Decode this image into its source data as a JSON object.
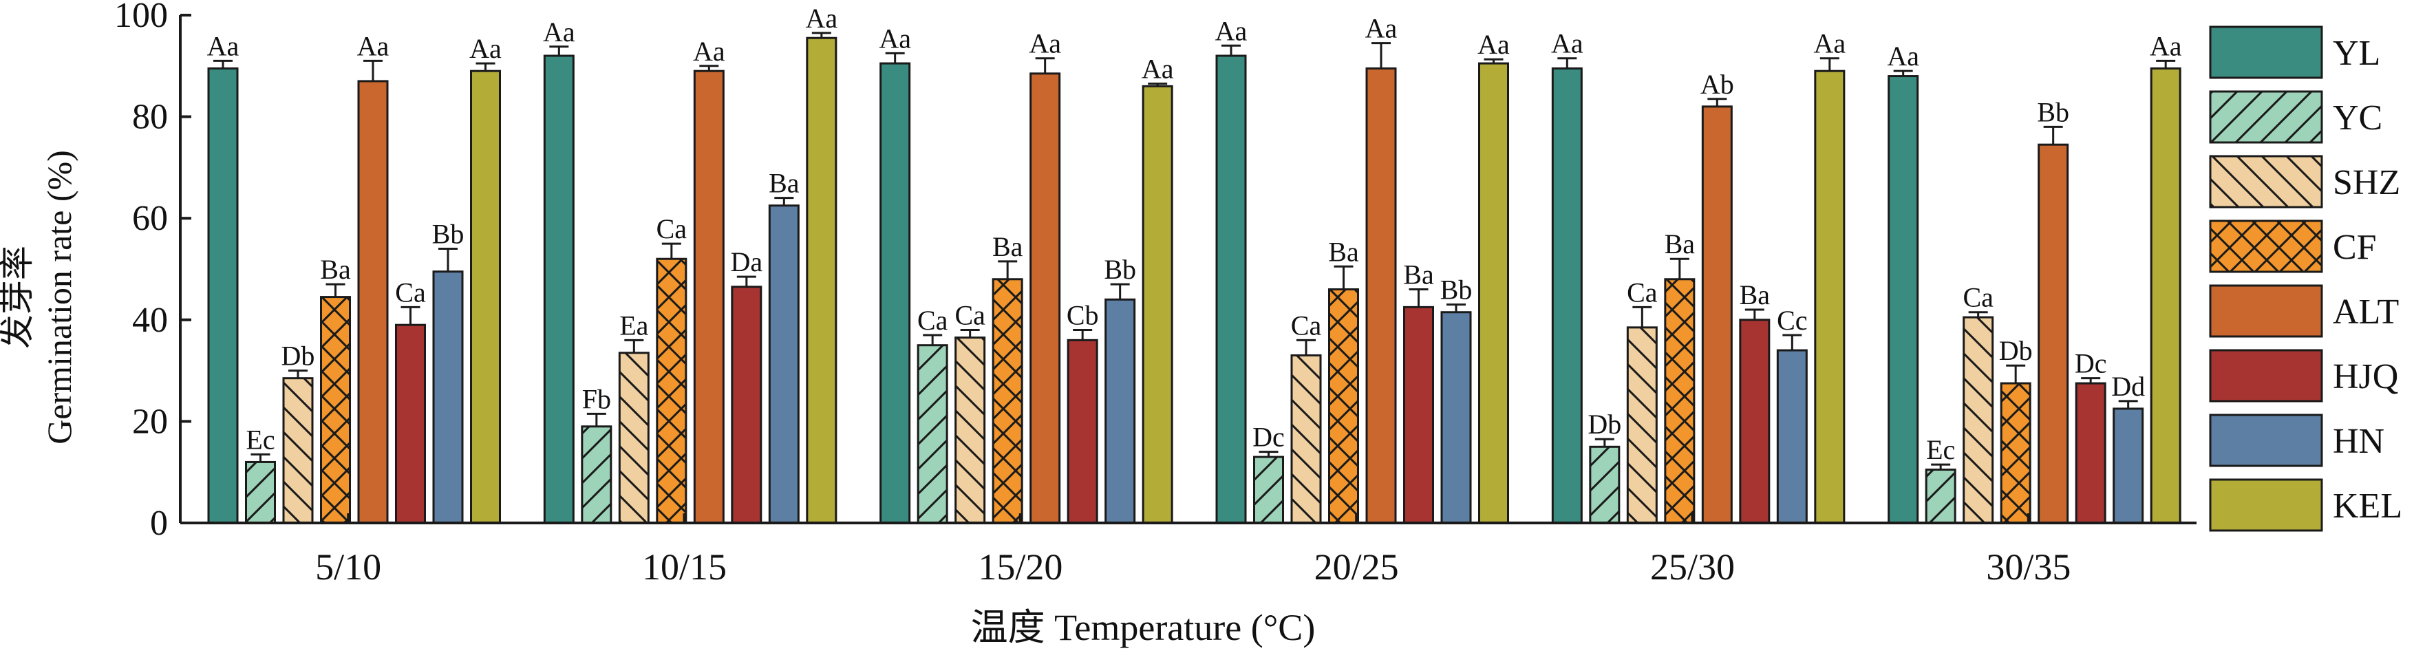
{
  "chart_data": {
    "type": "bar",
    "ylabel_cn": "发芽率",
    "ylabel": "Germination rate (%)",
    "xlabel": "温度 Temperature (°C)",
    "ylim": [
      0,
      100
    ],
    "yticks": [
      0,
      20,
      40,
      60,
      80,
      100
    ],
    "grid": false,
    "legend_position": "right",
    "categories": [
      "5/10",
      "10/15",
      "15/20",
      "20/25",
      "25/30",
      "30/35"
    ],
    "series": [
      {
        "name": "YL",
        "color": "#3a8c80",
        "pattern": "solid",
        "values": [
          89.5,
          92,
          90.5,
          92,
          89.5,
          88
        ],
        "errors": [
          1.5,
          1.8,
          2,
          2,
          2,
          1
        ],
        "labels": [
          "Aa",
          "Aa",
          "Aa",
          "Aa",
          "Aa",
          "Aa"
        ]
      },
      {
        "name": "YC",
        "color": "#9dd3b8",
        "pattern": "diag-forward",
        "values": [
          12,
          19,
          35,
          13,
          15,
          10.5
        ],
        "errors": [
          1.5,
          2.5,
          2,
          1,
          1.5,
          1
        ],
        "labels": [
          "Ec",
          "Fb",
          "Ca",
          "Dc",
          "Db",
          "Ec"
        ]
      },
      {
        "name": "SHZ",
        "color": "#f0cfa0",
        "pattern": "diag-back",
        "values": [
          28.5,
          33.5,
          36.5,
          33,
          38.5,
          40.5
        ],
        "errors": [
          1.5,
          2.5,
          1.5,
          3,
          4,
          1
        ],
        "labels": [
          "Db",
          "Ea",
          "Ca",
          "Ca",
          "Ca",
          "Ca"
        ]
      },
      {
        "name": "CF",
        "color": "#f2952c",
        "pattern": "cross",
        "values": [
          44.5,
          52,
          48,
          46,
          48,
          27.5
        ],
        "errors": [
          2.5,
          3,
          3.5,
          4.5,
          4,
          3.5
        ],
        "labels": [
          "Ba",
          "Ca",
          "Ba",
          "Ba",
          "Ba",
          "Db"
        ]
      },
      {
        "name": "ALT",
        "color": "#c9672f",
        "pattern": "solid",
        "values": [
          87,
          89,
          88.5,
          89.5,
          82,
          74.5
        ],
        "errors": [
          4,
          1,
          3,
          5,
          1.5,
          3.5
        ],
        "labels": [
          "Aa",
          "Aa",
          "Aa",
          "Aa",
          "Ab",
          "Bb"
        ]
      },
      {
        "name": "HJQ",
        "color": "#a83432",
        "pattern": "solid",
        "values": [
          39,
          46.5,
          36,
          42.5,
          40,
          27.5
        ],
        "errors": [
          3.5,
          2,
          2,
          3.5,
          2,
          1
        ],
        "labels": [
          "Ca",
          "Da",
          "Cb",
          "Ba",
          "Ba",
          "Dc"
        ]
      },
      {
        "name": "HN",
        "color": "#5d7fa3",
        "pattern": "solid",
        "values": [
          49.5,
          62.5,
          44,
          41.5,
          34,
          22.5
        ],
        "errors": [
          4.5,
          1.5,
          3,
          1.5,
          3,
          1.5
        ],
        "labels": [
          "Bb",
          "Ba",
          "Bb",
          "Bb",
          "Cc",
          "Dd"
        ]
      },
      {
        "name": "KEL",
        "color": "#b3ad38",
        "pattern": "solid",
        "values": [
          89,
          95.5,
          86,
          90.5,
          89,
          89.5
        ],
        "errors": [
          1.5,
          1,
          0.5,
          0.8,
          2.5,
          1.5
        ],
        "labels": [
          "Aa",
          "Aa",
          "Aa",
          "Aa",
          "Aa",
          "Aa"
        ]
      }
    ]
  }
}
